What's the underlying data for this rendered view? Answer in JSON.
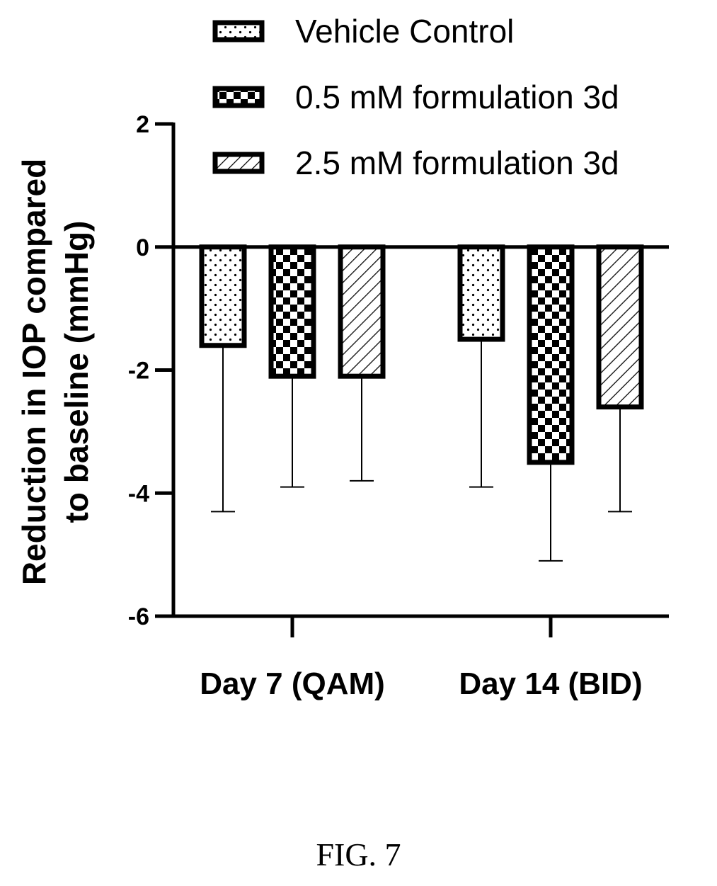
{
  "chart_data": {
    "type": "bar",
    "categories": [
      "Day 7 (QAM)",
      "Day 14 (BID)"
    ],
    "series": [
      {
        "name": "Vehicle Control",
        "values": [
          -1.6,
          -1.5
        ],
        "error": [
          2.7,
          2.4
        ],
        "pattern": "dots"
      },
      {
        "name": "0.5 mM formulation 3d",
        "values": [
          -2.1,
          -3.5
        ],
        "error": [
          1.8,
          1.6
        ],
        "pattern": "checker"
      },
      {
        "name": "2.5 mM formulation 3d",
        "values": [
          -2.1,
          -2.6
        ],
        "error": [
          1.7,
          1.7
        ],
        "pattern": "hatch"
      }
    ],
    "ylabel": [
      "Reduction in  IOP compared",
      "to baseline (mmHg)"
    ],
    "ylim": [
      -6,
      2
    ],
    "yticks": [
      "2",
      "0",
      "-2",
      "-4",
      "-6"
    ],
    "legend_position": "top-right",
    "grid": false
  },
  "caption": "FIG. 7",
  "colors": {
    "ink": "#000000",
    "background": "#ffffff"
  }
}
